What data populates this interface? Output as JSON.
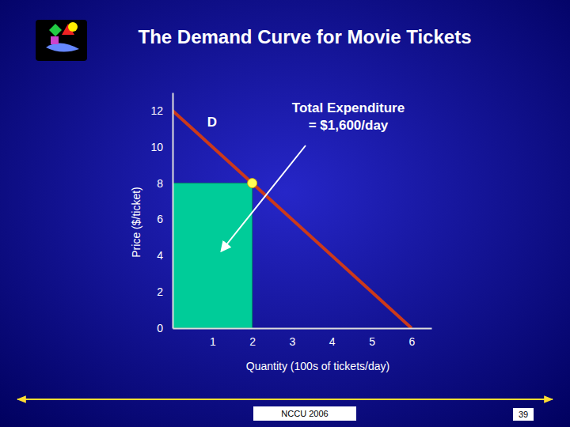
{
  "chart_data": {
    "type": "line",
    "title": "The Demand Curve for Movie Tickets",
    "x_label": "Quantity (100s of tickets/day)",
    "y_label": "Price ($/ticket)",
    "x": [
      0,
      6
    ],
    "series": [
      {
        "name": "D",
        "color": "#cc3a1a",
        "values": [
          12,
          0
        ]
      }
    ],
    "xlim": [
      0,
      6.5
    ],
    "ylim": [
      0,
      13
    ],
    "xticks": [
      1,
      2,
      3,
      4,
      5,
      6
    ],
    "yticks": [
      0,
      2,
      4,
      6,
      8,
      10,
      12
    ],
    "highlight": {
      "x": 2,
      "y": 8,
      "color": "#00cc99"
    },
    "annotation": [
      "Total Expenditure",
      "= $1,600/day"
    ],
    "footer": "NCCU 2006",
    "page": 39
  }
}
